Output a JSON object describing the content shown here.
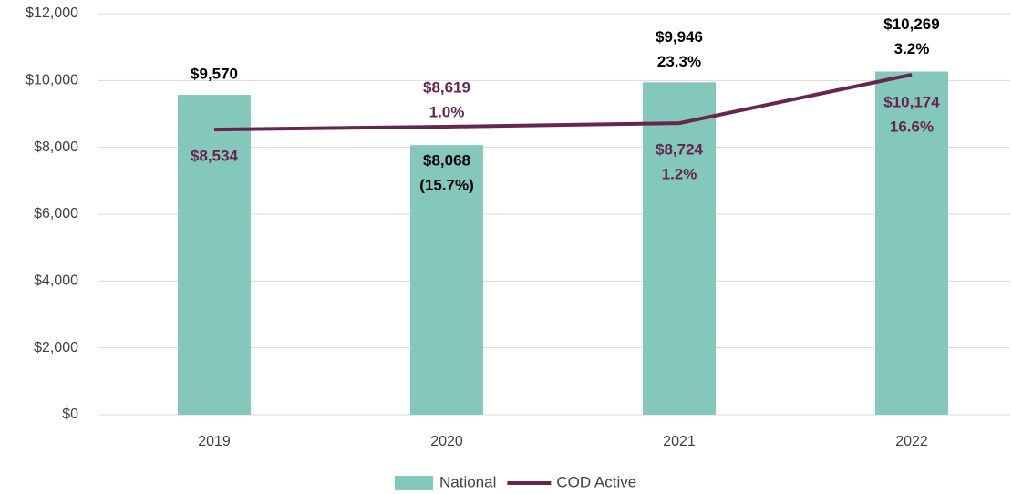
{
  "chart_data": {
    "type": "bar_line",
    "categories": [
      "2019",
      "2020",
      "2021",
      "2022"
    ],
    "series": [
      {
        "name": "National",
        "type": "bar",
        "color": "#84c8bc",
        "label_color": "#000000",
        "values": [
          9570,
          8068,
          9946,
          10269
        ],
        "value_labels": [
          "$9,570",
          "$8,068",
          "$9,946",
          "$10,269"
        ],
        "change_labels": [
          null,
          "(15.7%)",
          "23.3%",
          "3.2%"
        ]
      },
      {
        "name": "COD Active",
        "type": "line",
        "color": "#66264f",
        "label_color": "#66264f",
        "values": [
          8534,
          8619,
          8724,
          10174
        ],
        "value_labels": [
          "$8,534",
          "$8,619",
          "$8,724",
          "$10,174"
        ],
        "change_labels": [
          null,
          "1.0%",
          "1.2%",
          "16.6%"
        ]
      }
    ],
    "ylim": [
      0,
      12000
    ],
    "yticks": [
      {
        "value": 0,
        "label": "$0"
      },
      {
        "value": 2000,
        "label": "$2,000"
      },
      {
        "value": 4000,
        "label": "$4,000"
      },
      {
        "value": 6000,
        "label": "$6,000"
      },
      {
        "value": 8000,
        "label": "$8,000"
      },
      {
        "value": 10000,
        "label": "$10,000"
      },
      {
        "value": 12000,
        "label": "$12,000"
      }
    ],
    "grid": true,
    "legend": "bottom"
  }
}
